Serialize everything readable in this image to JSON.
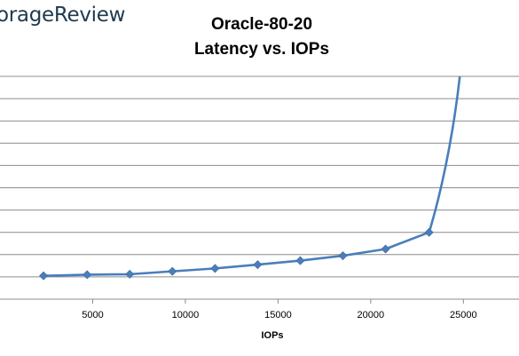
{
  "logo_text": "orageReview",
  "chart_data": {
    "type": "line",
    "title": "Oracle-80-20",
    "subtitle": "Latency vs. IOPs",
    "xlabel": "IOPs",
    "ylabel": "",
    "x_ticks": [
      5000,
      10000,
      15000,
      20000,
      25000
    ],
    "xlim": [
      0,
      28000
    ],
    "ylim": [
      0,
      10
    ],
    "y_gridlines": [
      1,
      2,
      3,
      4,
      5,
      6,
      7,
      8,
      9,
      10
    ],
    "grid": true,
    "legend": "none",
    "line_color": "#4a7ebb",
    "series": [
      {
        "x": [
          2350,
          4700,
          7000,
          9300,
          11600,
          13900,
          16200,
          18500,
          20800,
          23150
        ],
        "y": [
          1.05,
          1.1,
          1.12,
          1.25,
          1.38,
          1.55,
          1.73,
          1.95,
          2.25,
          3.0
        ],
        "tail": [
          [
            23700,
            4.5
          ],
          [
            24400,
            7.0
          ],
          [
            24800,
            9.95
          ]
        ]
      }
    ]
  }
}
